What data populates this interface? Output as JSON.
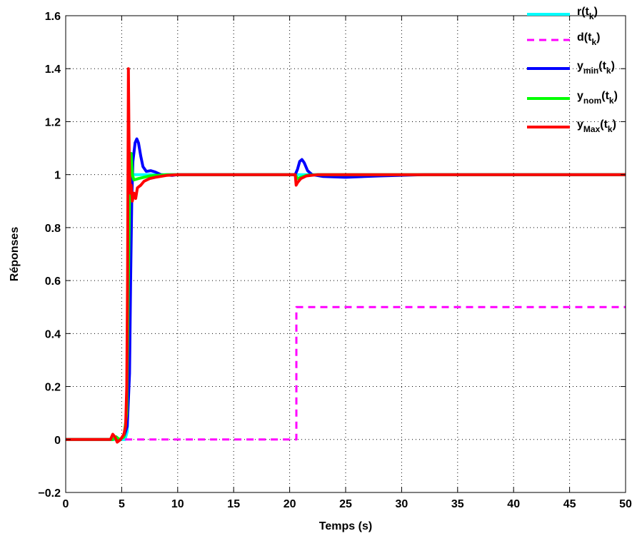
{
  "chart_data": {
    "type": "line",
    "xlabel": "Temps (s)",
    "ylabel": "Réponses",
    "xlim": [
      0,
      50
    ],
    "ylim": [
      -0.2,
      1.6
    ],
    "xticks": [
      0,
      5,
      10,
      15,
      20,
      25,
      30,
      35,
      40,
      45,
      50
    ],
    "yticks": [
      -0.2,
      0,
      0.2,
      0.4,
      0.6,
      0.8,
      1,
      1.2,
      1.4,
      1.6
    ],
    "ytick_labels": [
      "−0.2",
      "0",
      "0.2",
      "0.4",
      "0.6",
      "0.8",
      "1",
      "1.2",
      "1.4",
      "1.6"
    ],
    "grid": true,
    "legend_position": "top-right",
    "series": [
      {
        "key": "r",
        "legend": {
          "base": "r(t",
          "sub": "k",
          "tail": ")"
        },
        "color": "#00ffff",
        "dash": "none",
        "points": [
          [
            0,
            0
          ],
          [
            5.3,
            0
          ],
          [
            5.5,
            0.03
          ],
          [
            5.6,
            0.3
          ],
          [
            5.7,
            1
          ],
          [
            50,
            1
          ]
        ]
      },
      {
        "key": "d",
        "legend": {
          "base": "d(t",
          "sub": "k",
          "tail": ")"
        },
        "color": "#ff00ff",
        "dash": "10,7",
        "points": [
          [
            5.3,
            0
          ],
          [
            20.6,
            0
          ],
          [
            20.6,
            0.5
          ],
          [
            50,
            0.5
          ]
        ]
      },
      {
        "key": "ymin",
        "legend": {
          "base": "y",
          "sub": "min",
          "mid": "(t",
          "sub2": "k",
          "tail": ")"
        },
        "color": "#0000ff",
        "dash": "none",
        "points": [
          [
            0,
            0
          ],
          [
            4.2,
            0
          ],
          [
            4.5,
            0.01
          ],
          [
            4.8,
            0
          ],
          [
            5.2,
            0.01
          ],
          [
            5.5,
            0.05
          ],
          [
            5.7,
            0.25
          ],
          [
            5.8,
            0.6
          ],
          [
            5.9,
            0.9
          ],
          [
            6.0,
            1.05
          ],
          [
            6.2,
            1.12
          ],
          [
            6.35,
            1.135
          ],
          [
            6.5,
            1.12
          ],
          [
            6.7,
            1.07
          ],
          [
            6.9,
            1.03
          ],
          [
            7.2,
            1.012
          ],
          [
            7.6,
            1.015
          ],
          [
            8.0,
            1.01
          ],
          [
            8.5,
            1.0
          ],
          [
            9.5,
            0.997
          ],
          [
            10,
            1.0
          ],
          [
            20.5,
            1.0
          ],
          [
            20.7,
            1.02
          ],
          [
            20.9,
            1.05
          ],
          [
            21.1,
            1.057
          ],
          [
            21.3,
            1.045
          ],
          [
            21.6,
            1.015
          ],
          [
            22,
            1.0
          ],
          [
            23,
            0.993
          ],
          [
            25,
            0.99
          ],
          [
            28,
            0.995
          ],
          [
            32,
            1.0
          ],
          [
            50,
            1.0
          ]
        ]
      },
      {
        "key": "ynom",
        "legend": {
          "base": "y",
          "sub": "nom",
          "mid": "(t",
          "sub2": "k",
          "tail": ")"
        },
        "color": "#00ff00",
        "dash": "none",
        "points": [
          [
            0,
            0
          ],
          [
            4.2,
            0
          ],
          [
            4.5,
            0.01
          ],
          [
            4.8,
            0
          ],
          [
            5.2,
            0.01
          ],
          [
            5.45,
            0.1
          ],
          [
            5.6,
            0.6
          ],
          [
            5.75,
            1.05
          ],
          [
            5.85,
            1.08
          ],
          [
            5.95,
            1.0
          ],
          [
            6.1,
            0.98
          ],
          [
            6.5,
            0.985
          ],
          [
            7.5,
            0.995
          ],
          [
            9,
            1.0
          ],
          [
            20.5,
            1.0
          ],
          [
            20.7,
            0.985
          ],
          [
            21,
            0.99
          ],
          [
            21.5,
            0.997
          ],
          [
            22.5,
            1.0
          ],
          [
            50,
            1.0
          ]
        ]
      },
      {
        "key": "ymax",
        "legend": {
          "base": "y",
          "sub": "Max",
          "mid": "(t",
          "sub2": "k",
          "tail": ")"
        },
        "color": "#ff0000",
        "dash": "none",
        "points": [
          [
            0,
            0
          ],
          [
            4.0,
            0
          ],
          [
            4.2,
            0.02
          ],
          [
            4.4,
            0.01
          ],
          [
            4.6,
            -0.01
          ],
          [
            4.9,
            0.0
          ],
          [
            5.2,
            0.02
          ],
          [
            5.35,
            0.05
          ],
          [
            5.45,
            0.2
          ],
          [
            5.52,
            0.6
          ],
          [
            5.56,
            1.0
          ],
          [
            5.6,
            1.4
          ],
          [
            5.65,
            1.15
          ],
          [
            5.7,
            1.0
          ],
          [
            5.78,
            0.93
          ],
          [
            5.85,
            0.96
          ],
          [
            5.95,
            0.9
          ],
          [
            6.1,
            0.93
          ],
          [
            6.25,
            0.91
          ],
          [
            6.4,
            0.95
          ],
          [
            6.7,
            0.96
          ],
          [
            7.0,
            0.975
          ],
          [
            7.5,
            0.985
          ],
          [
            8,
            0.99
          ],
          [
            9,
            0.997
          ],
          [
            10,
            1.0
          ],
          [
            20.5,
            1.0
          ],
          [
            20.58,
            0.96
          ],
          [
            20.7,
            0.97
          ],
          [
            21,
            0.985
          ],
          [
            21.5,
            0.995
          ],
          [
            22.5,
            1.0
          ],
          [
            50,
            1.0
          ]
        ]
      }
    ]
  }
}
